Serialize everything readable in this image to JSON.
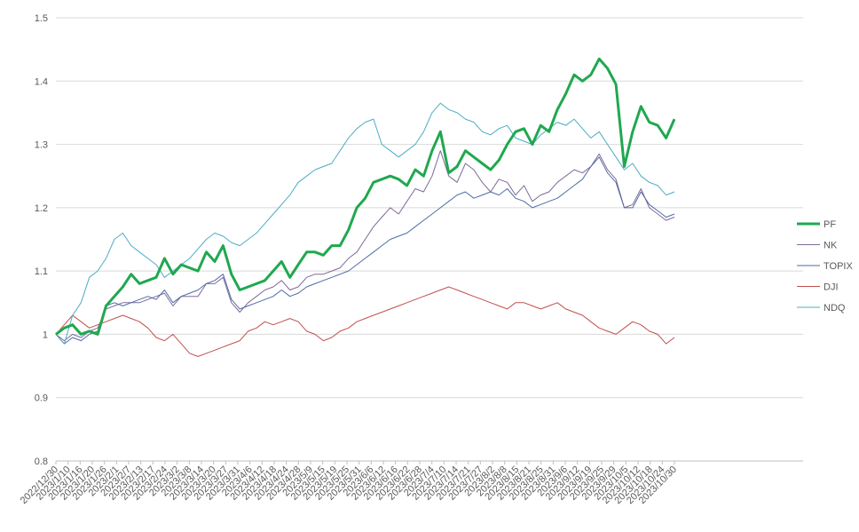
{
  "chart_data": {
    "type": "line",
    "title": "",
    "xlabel": "",
    "ylabel": "",
    "ylim": [
      0.8,
      1.5
    ],
    "yticks": [
      "0.8",
      "0.9",
      "1",
      "1.1",
      "1.2",
      "1.3",
      "1.4",
      "1.5"
    ],
    "grid": "horizontal",
    "legend": "right",
    "xtick_labels": [
      "2022/12/30",
      "2023/1/10",
      "2023/1/16",
      "2023/1/20",
      "2023/1/26",
      "2023/2/1",
      "2023/2/7",
      "2023/2/13",
      "2023/2/17",
      "2023/2/24",
      "2023/3/2",
      "2023/3/8",
      "2023/3/14",
      "2023/3/20",
      "2023/3/27",
      "2023/3/31",
      "2023/4/6",
      "2023/4/12",
      "2023/4/18",
      "2023/4/24",
      "2023/4/28",
      "2023/5/9",
      "2023/5/15",
      "2023/5/19",
      "2023/5/25",
      "2023/5/31",
      "2023/6/6",
      "2023/6/12",
      "2023/6/16",
      "2023/6/22",
      "2023/6/28",
      "2023/7/4",
      "2023/7/10",
      "2023/7/14",
      "2023/7/21",
      "2023/7/27",
      "2023/8/2",
      "2023/8/8",
      "2023/8/15",
      "2023/8/21",
      "2023/8/25",
      "2023/8/31",
      "2023/9/6",
      "2023/9/12",
      "2023/9/19",
      "2023/9/25",
      "2023/9/29",
      "2023/10/5",
      "2023/10/12",
      "2023/10/18",
      "2023/10/24",
      "2023/10/30"
    ],
    "series": [
      {
        "name": "PF",
        "color": "#1fa84f",
        "width": 3,
        "values": [
          1.0,
          1.01,
          1.015,
          1.0,
          1.005,
          1.0,
          1.045,
          1.06,
          1.075,
          1.095,
          1.08,
          1.085,
          1.09,
          1.12,
          1.095,
          1.11,
          1.105,
          1.1,
          1.13,
          1.115,
          1.14,
          1.095,
          1.07,
          1.075,
          1.08,
          1.085,
          1.1,
          1.115,
          1.09,
          1.11,
          1.13,
          1.13,
          1.125,
          1.14,
          1.14,
          1.165,
          1.2,
          1.215,
          1.24,
          1.245,
          1.25,
          1.245,
          1.235,
          1.26,
          1.25,
          1.29,
          1.32,
          1.255,
          1.265,
          1.29,
          1.28,
          1.27,
          1.26,
          1.275,
          1.3,
          1.32,
          1.325,
          1.3,
          1.33,
          1.32,
          1.355,
          1.38,
          1.41,
          1.4,
          1.41,
          1.435,
          1.42,
          1.395,
          1.265,
          1.32,
          1.36,
          1.335,
          1.33,
          1.31,
          1.34
        ]
      },
      {
        "name": "NK",
        "color": "#7f6a99",
        "width": 1,
        "values": [
          1.0,
          0.99,
          1.0,
          0.995,
          1.005,
          1.01,
          1.04,
          1.045,
          1.05,
          1.05,
          1.05,
          1.055,
          1.06,
          1.065,
          1.045,
          1.06,
          1.06,
          1.06,
          1.08,
          1.08,
          1.09,
          1.05,
          1.035,
          1.05,
          1.06,
          1.07,
          1.075,
          1.085,
          1.07,
          1.075,
          1.09,
          1.095,
          1.095,
          1.1,
          1.105,
          1.12,
          1.13,
          1.15,
          1.17,
          1.185,
          1.2,
          1.19,
          1.21,
          1.23,
          1.225,
          1.25,
          1.29,
          1.25,
          1.24,
          1.27,
          1.26,
          1.24,
          1.225,
          1.245,
          1.24,
          1.22,
          1.235,
          1.21,
          1.22,
          1.225,
          1.24,
          1.25,
          1.26,
          1.255,
          1.265,
          1.285,
          1.26,
          1.245,
          1.2,
          1.205,
          1.23,
          1.2,
          1.19,
          1.18,
          1.185
        ]
      },
      {
        "name": "TOPIX",
        "color": "#4f6ba6",
        "width": 1,
        "values": [
          1.0,
          0.985,
          0.995,
          0.99,
          1.0,
          1.005,
          1.045,
          1.05,
          1.045,
          1.05,
          1.055,
          1.06,
          1.055,
          1.07,
          1.05,
          1.06,
          1.065,
          1.07,
          1.08,
          1.085,
          1.095,
          1.055,
          1.04,
          1.045,
          1.05,
          1.055,
          1.06,
          1.07,
          1.06,
          1.065,
          1.075,
          1.08,
          1.085,
          1.09,
          1.095,
          1.1,
          1.11,
          1.12,
          1.13,
          1.14,
          1.15,
          1.155,
          1.16,
          1.17,
          1.18,
          1.19,
          1.2,
          1.21,
          1.22,
          1.225,
          1.215,
          1.22,
          1.225,
          1.22,
          1.23,
          1.215,
          1.21,
          1.2,
          1.205,
          1.21,
          1.215,
          1.225,
          1.235,
          1.245,
          1.265,
          1.28,
          1.255,
          1.24,
          1.2,
          1.2,
          1.225,
          1.205,
          1.195,
          1.185,
          1.19
        ]
      },
      {
        "name": "DJI",
        "color": "#c0504d",
        "width": 1,
        "values": [
          1.0,
          1.015,
          1.03,
          1.02,
          1.01,
          1.015,
          1.02,
          1.025,
          1.03,
          1.025,
          1.02,
          1.01,
          0.995,
          0.99,
          1.0,
          0.985,
          0.97,
          0.965,
          0.97,
          0.975,
          0.98,
          0.985,
          0.99,
          1.005,
          1.01,
          1.02,
          1.015,
          1.02,
          1.025,
          1.02,
          1.005,
          1.0,
          0.99,
          0.995,
          1.005,
          1.01,
          1.02,
          1.025,
          1.03,
          1.035,
          1.04,
          1.045,
          1.05,
          1.055,
          1.06,
          1.065,
          1.07,
          1.075,
          1.07,
          1.065,
          1.06,
          1.055,
          1.05,
          1.045,
          1.04,
          1.05,
          1.05,
          1.045,
          1.04,
          1.045,
          1.05,
          1.04,
          1.035,
          1.03,
          1.02,
          1.01,
          1.005,
          1.0,
          1.01,
          1.02,
          1.015,
          1.005,
          1.0,
          0.985,
          0.995
        ]
      },
      {
        "name": "NDQ",
        "color": "#4bacc6",
        "width": 1,
        "values": [
          1.0,
          0.985,
          1.03,
          1.05,
          1.09,
          1.1,
          1.12,
          1.15,
          1.16,
          1.14,
          1.13,
          1.12,
          1.11,
          1.09,
          1.1,
          1.11,
          1.12,
          1.135,
          1.15,
          1.16,
          1.155,
          1.145,
          1.14,
          1.15,
          1.16,
          1.175,
          1.19,
          1.205,
          1.22,
          1.24,
          1.25,
          1.26,
          1.265,
          1.27,
          1.29,
          1.31,
          1.325,
          1.335,
          1.34,
          1.3,
          1.29,
          1.28,
          1.29,
          1.3,
          1.32,
          1.35,
          1.365,
          1.355,
          1.35,
          1.34,
          1.335,
          1.32,
          1.315,
          1.325,
          1.33,
          1.31,
          1.305,
          1.3,
          1.315,
          1.325,
          1.335,
          1.33,
          1.34,
          1.325,
          1.31,
          1.32,
          1.3,
          1.28,
          1.26,
          1.27,
          1.25,
          1.24,
          1.235,
          1.22,
          1.225
        ]
      }
    ]
  }
}
